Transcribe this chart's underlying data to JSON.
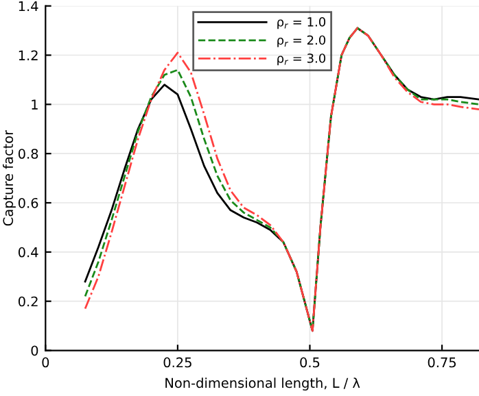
{
  "chart_data": {
    "type": "line",
    "xlabel": "Non-dimensional length, L / λ",
    "ylabel": "Capture factor",
    "x": [
      0.075,
      0.1,
      0.125,
      0.15,
      0.175,
      0.2,
      0.225,
      0.25,
      0.275,
      0.3,
      0.325,
      0.35,
      0.375,
      0.4,
      0.425,
      0.45,
      0.475,
      0.49,
      0.505,
      0.52,
      0.54,
      0.56,
      0.575,
      0.59,
      0.61,
      0.635,
      0.66,
      0.685,
      0.71,
      0.735,
      0.76,
      0.785,
      0.82
    ],
    "series": [
      {
        "name": "ρ$_{r}$ = 1.0",
        "color": "#000000",
        "line_style": "solid",
        "values": [
          0.28,
          0.42,
          0.57,
          0.74,
          0.9,
          1.02,
          1.08,
          1.04,
          0.9,
          0.75,
          0.64,
          0.57,
          0.54,
          0.52,
          0.49,
          0.44,
          0.32,
          0.2,
          0.08,
          0.5,
          0.95,
          1.2,
          1.27,
          1.31,
          1.28,
          1.2,
          1.12,
          1.06,
          1.03,
          1.02,
          1.03,
          1.03,
          1.02
        ]
      },
      {
        "name": "ρ$_{r}$ = 2.0",
        "color": "#1a8a1a",
        "line_style": "dashed",
        "values": [
          0.22,
          0.36,
          0.53,
          0.71,
          0.89,
          1.03,
          1.12,
          1.14,
          1.03,
          0.86,
          0.71,
          0.61,
          0.56,
          0.53,
          0.5,
          0.44,
          0.32,
          0.2,
          0.08,
          0.5,
          0.95,
          1.2,
          1.27,
          1.31,
          1.28,
          1.2,
          1.12,
          1.06,
          1.02,
          1.02,
          1.02,
          1.01,
          1.0
        ]
      },
      {
        "name": "ρ$_{r}$ = 3.0",
        "color": "#ff4040",
        "line_style": "dashdot",
        "values": [
          0.17,
          0.3,
          0.48,
          0.67,
          0.86,
          1.02,
          1.14,
          1.21,
          1.13,
          0.96,
          0.78,
          0.65,
          0.58,
          0.55,
          0.51,
          0.44,
          0.32,
          0.2,
          0.08,
          0.5,
          0.95,
          1.2,
          1.27,
          1.31,
          1.28,
          1.2,
          1.11,
          1.05,
          1.01,
          1.0,
          1.0,
          0.99,
          0.98
        ]
      }
    ],
    "xlim": [
      0,
      0.82
    ],
    "ylim": [
      0,
      1.4
    ],
    "xticks": [
      0,
      0.25,
      0.5,
      0.75
    ],
    "yticks": [
      0,
      0.2,
      0.4,
      0.6,
      0.8,
      1,
      1.2,
      1.4
    ],
    "grid": true,
    "legend": "top"
  }
}
